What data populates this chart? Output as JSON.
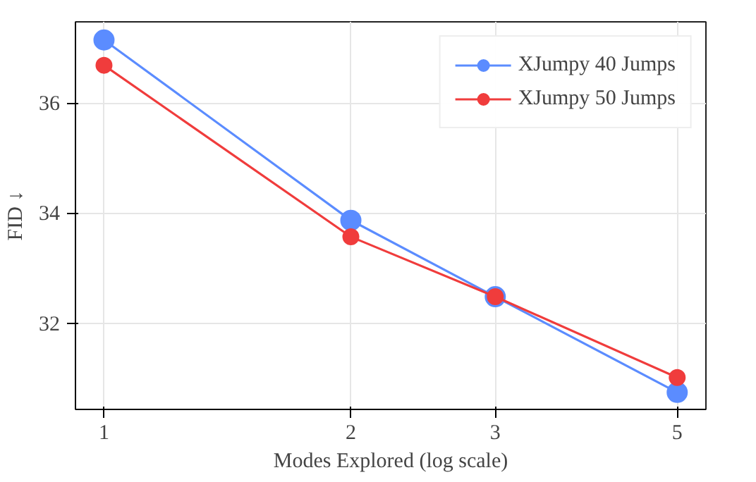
{
  "chart_data": {
    "type": "line",
    "xlabel": "Modes Explored (log scale)",
    "ylabel": "FID ↓",
    "x": [
      1,
      2,
      3,
      5
    ],
    "log": "x",
    "xlim": [
      0.923,
      5.42
    ],
    "xticks": [
      1,
      2,
      3,
      5
    ],
    "ylim": [
      30.43,
      37.48
    ],
    "yticks": [
      32,
      34,
      36
    ],
    "series": [
      {
        "name": "XJumpy 40 Jumps",
        "color": "#5b8cff",
        "values": [
          37.15,
          33.87,
          32.48,
          30.74
        ]
      },
      {
        "name": "XJumpy 50 Jumps",
        "color": "#f03c3c",
        "values": [
          36.69,
          33.57,
          32.48,
          31.01
        ]
      }
    ],
    "marker": "circle",
    "line_style": "solid",
    "grid": true,
    "legend": "top right"
  }
}
